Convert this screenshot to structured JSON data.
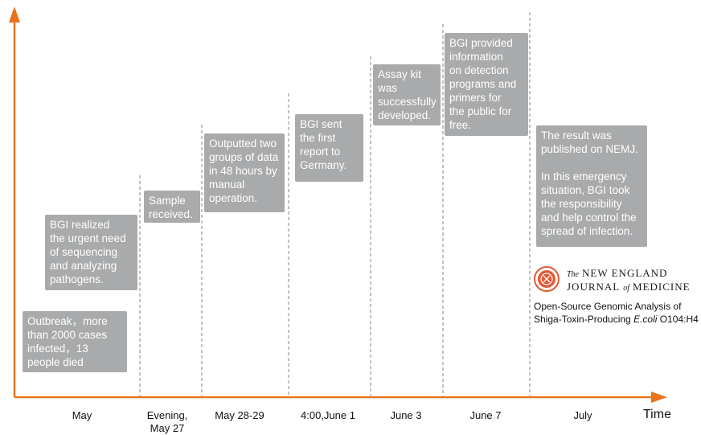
{
  "axis": {
    "x_label": "Time",
    "accent_color": "#e8731a",
    "box_color": "#a9aaab"
  },
  "ticks": [
    {
      "lines": [
        "May"
      ]
    },
    {
      "lines": [
        "Evening,",
        "May 27"
      ]
    },
    {
      "lines": [
        "May 28-29"
      ]
    },
    {
      "lines": [
        "4:00,June 1"
      ]
    },
    {
      "lines": [
        "June 3"
      ]
    },
    {
      "lines": [
        "June 7"
      ]
    },
    {
      "lines": [
        "July"
      ]
    }
  ],
  "events": [
    {
      "lines": [
        "Outbreak，more",
        "than 2000 cases",
        "infected，13",
        "people died"
      ]
    },
    {
      "lines": [
        "BGI realized",
        "the urgent need",
        "of sequencing",
        "and analyzing",
        "pathogens."
      ]
    },
    {
      "lines": [
        "Sample",
        "received."
      ]
    },
    {
      "lines": [
        "Outputted two",
        "groups of data",
        "in 48 hours by",
        "manual",
        "operation."
      ]
    },
    {
      "lines": [
        "BGI sent",
        "the first",
        "report to",
        "Germany."
      ]
    },
    {
      "lines": [
        "Assay kit",
        "was",
        "successfully",
        "developed."
      ]
    },
    {
      "lines": [
        "BGI provided",
        "information",
        "on detection",
        "programs and",
        "primers for",
        "the public for",
        "free."
      ]
    },
    {
      "lines": [
        "The result was",
        "published on NEMJ.",
        "",
        "In this emergency",
        "situation, BGI took",
        "the responsibility",
        "and help control the",
        "spread of infection."
      ]
    }
  ],
  "journal": {
    "logo_icon": "nejm-seal-icon",
    "title_prefix": "The",
    "title_line1": "NEW ENGLAND",
    "title_line2_a": "JOURNAL",
    "title_line2_of": "of",
    "title_line2_b": "MEDICINE"
  },
  "article": {
    "line1": "Open-Source Genomic Analysis of",
    "line2_prefix": "Shiga-Toxin-Producing ",
    "line2_italic": "E.coli",
    "line2_suffix": " O104:H4"
  }
}
